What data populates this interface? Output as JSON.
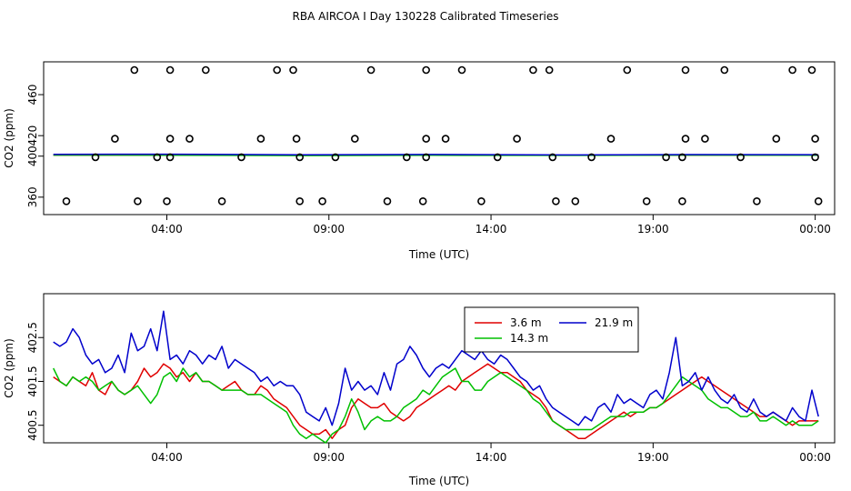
{
  "figure": {
    "title": "RBA AIRCOA I  Day 130228  Calibrated Timeseries"
  },
  "colors": {
    "s36": "#e00000",
    "s143": "#00c000",
    "s219": "#0000cc",
    "axis": "#000000"
  },
  "chart_data": [
    {
      "type": "line",
      "xlabel": "Time (UTC)",
      "ylabel": "CO2 (ppm)",
      "x_ticks": [
        "04:00",
        "09:00",
        "14:00",
        "19:00",
        "00:00"
      ],
      "y_ticks": [
        "360",
        "400",
        "420",
        "460"
      ],
      "xlim": [
        0,
        24.4
      ],
      "ylim": [
        343,
        492
      ],
      "grid": false,
      "series": [
        {
          "name": "3.6 m",
          "color": "#e00000",
          "x": [
            0.3,
            4,
            8,
            12,
            16,
            20,
            23.9
          ],
          "values": [
            401,
            401,
            400.8,
            401,
            400.9,
            401,
            401
          ]
        },
        {
          "name": "14.3 m",
          "color": "#00c000",
          "x": [
            0.3,
            4,
            8,
            12,
            16,
            20,
            23.9
          ],
          "values": [
            401,
            400.9,
            400.6,
            400.8,
            400.7,
            401,
            400.9
          ]
        },
        {
          "name": "21.9 m",
          "color": "#0000cc",
          "x": [
            0.3,
            4,
            8,
            12,
            16,
            20,
            23.9
          ],
          "values": [
            401.8,
            401.9,
            401.3,
            401.6,
            401.2,
            401.5,
            401.4
          ]
        }
      ],
      "scatter_points": [
        {
          "x": 0.7,
          "y": 356
        },
        {
          "x": 1.6,
          "y": 399
        },
        {
          "x": 2.2,
          "y": 417
        },
        {
          "x": 2.8,
          "y": 484
        },
        {
          "x": 2.9,
          "y": 356
        },
        {
          "x": 3.5,
          "y": 399
        },
        {
          "x": 3.8,
          "y": 356
        },
        {
          "x": 3.9,
          "y": 399
        },
        {
          "x": 3.9,
          "y": 417
        },
        {
          "x": 3.9,
          "y": 484
        },
        {
          "x": 4.5,
          "y": 417
        },
        {
          "x": 5.0,
          "y": 484
        },
        {
          "x": 5.5,
          "y": 356
        },
        {
          "x": 6.1,
          "y": 399
        },
        {
          "x": 6.7,
          "y": 417
        },
        {
          "x": 7.2,
          "y": 484
        },
        {
          "x": 7.7,
          "y": 484
        },
        {
          "x": 7.8,
          "y": 417
        },
        {
          "x": 7.9,
          "y": 399
        },
        {
          "x": 7.9,
          "y": 356
        },
        {
          "x": 8.6,
          "y": 356
        },
        {
          "x": 9.0,
          "y": 399
        },
        {
          "x": 9.6,
          "y": 417
        },
        {
          "x": 10.1,
          "y": 484
        },
        {
          "x": 10.6,
          "y": 356
        },
        {
          "x": 11.2,
          "y": 399
        },
        {
          "x": 11.7,
          "y": 356
        },
        {
          "x": 11.8,
          "y": 399
        },
        {
          "x": 11.8,
          "y": 417
        },
        {
          "x": 11.8,
          "y": 484
        },
        {
          "x": 12.4,
          "y": 417
        },
        {
          "x": 12.9,
          "y": 484
        },
        {
          "x": 13.5,
          "y": 356
        },
        {
          "x": 14.0,
          "y": 399
        },
        {
          "x": 14.6,
          "y": 417
        },
        {
          "x": 15.1,
          "y": 484
        },
        {
          "x": 15.6,
          "y": 484
        },
        {
          "x": 15.7,
          "y": 399
        },
        {
          "x": 15.8,
          "y": 356
        },
        {
          "x": 16.4,
          "y": 356
        },
        {
          "x": 16.9,
          "y": 399
        },
        {
          "x": 17.5,
          "y": 417
        },
        {
          "x": 18.0,
          "y": 484
        },
        {
          "x": 18.6,
          "y": 356
        },
        {
          "x": 19.2,
          "y": 399
        },
        {
          "x": 19.7,
          "y": 356
        },
        {
          "x": 19.7,
          "y": 399
        },
        {
          "x": 19.8,
          "y": 417
        },
        {
          "x": 19.8,
          "y": 484
        },
        {
          "x": 20.4,
          "y": 417
        },
        {
          "x": 21.0,
          "y": 484
        },
        {
          "x": 21.5,
          "y": 399
        },
        {
          "x": 22.0,
          "y": 356
        },
        {
          "x": 22.6,
          "y": 417
        },
        {
          "x": 23.1,
          "y": 484
        },
        {
          "x": 23.7,
          "y": 484
        },
        {
          "x": 23.8,
          "y": 417
        },
        {
          "x": 23.8,
          "y": 399
        },
        {
          "x": 23.9,
          "y": 356
        }
      ]
    },
    {
      "type": "line",
      "xlabel": "Time (UTC)",
      "ylabel": "CO2 (ppm)",
      "x_ticks": [
        "04:00",
        "09:00",
        "14:00",
        "19:00",
        "00:00"
      ],
      "y_ticks": [
        "400.5",
        "401.5",
        "402.5"
      ],
      "xlim": [
        0,
        24.4
      ],
      "ylim": [
        400.1,
        403.5
      ],
      "grid": false,
      "legend": {
        "position": "top-center",
        "entries": [
          "3.6 m",
          "21.9 m",
          "14.3 m"
        ]
      },
      "series": [
        {
          "name": "3.6 m",
          "color": "#e00000",
          "x": [
            0.3,
            0.5,
            0.7,
            0.9,
            1.1,
            1.3,
            1.5,
            1.7,
            1.9,
            2.1,
            2.3,
            2.5,
            2.7,
            2.9,
            3.1,
            3.3,
            3.5,
            3.7,
            3.9,
            4.1,
            4.3,
            4.5,
            4.7,
            4.9,
            5.1,
            5.3,
            5.5,
            5.7,
            5.9,
            6.1,
            6.3,
            6.5,
            6.7,
            6.9,
            7.1,
            7.3,
            7.5,
            7.7,
            7.9,
            8.1,
            8.3,
            8.5,
            8.7,
            8.9,
            9.1,
            9.3,
            9.5,
            9.7,
            9.9,
            10.1,
            10.3,
            10.5,
            10.7,
            10.9,
            11.1,
            11.3,
            11.5,
            11.7,
            11.9,
            12.1,
            12.3,
            12.5,
            12.7,
            12.9,
            13.1,
            13.3,
            13.5,
            13.7,
            13.9,
            14.1,
            14.3,
            14.5,
            14.7,
            14.9,
            15.1,
            15.3,
            15.5,
            15.7,
            15.9,
            16.1,
            16.3,
            16.5,
            16.7,
            16.9,
            17.1,
            17.3,
            17.5,
            17.7,
            17.9,
            18.1,
            18.3,
            18.5,
            18.7,
            18.9,
            19.1,
            19.3,
            19.5,
            19.7,
            19.9,
            20.1,
            20.3,
            20.5,
            20.7,
            20.9,
            21.1,
            21.3,
            21.5,
            21.7,
            21.9,
            22.1,
            22.3,
            22.5,
            22.7,
            22.9,
            23.1,
            23.3,
            23.5,
            23.7,
            23.9
          ],
          "values": [
            401.6,
            401.5,
            401.4,
            401.6,
            401.5,
            401.4,
            401.7,
            401.3,
            401.2,
            401.5,
            401.3,
            401.2,
            401.3,
            401.5,
            401.8,
            401.6,
            401.7,
            401.9,
            401.8,
            401.6,
            401.7,
            401.5,
            401.7,
            401.5,
            401.5,
            401.4,
            401.3,
            401.4,
            401.5,
            401.3,
            401.2,
            401.2,
            401.4,
            401.3,
            401.1,
            401.0,
            400.9,
            400.7,
            400.5,
            400.4,
            400.3,
            400.3,
            400.4,
            400.2,
            400.4,
            400.5,
            400.9,
            401.1,
            401.0,
            400.9,
            400.9,
            401.0,
            400.8,
            400.7,
            400.6,
            400.7,
            400.9,
            401.0,
            401.1,
            401.2,
            401.3,
            401.4,
            401.3,
            401.5,
            401.6,
            401.7,
            401.8,
            401.9,
            401.8,
            401.7,
            401.7,
            401.6,
            401.5,
            401.3,
            401.2,
            401.1,
            400.9,
            400.6,
            400.5,
            400.4,
            400.3,
            400.2,
            400.2,
            400.3,
            400.4,
            400.5,
            400.6,
            400.7,
            400.8,
            400.7,
            400.8,
            400.8,
            400.9,
            400.9,
            401.0,
            401.1,
            401.2,
            401.3,
            401.4,
            401.5,
            401.6,
            401.5,
            401.4,
            401.3,
            401.2,
            401.1,
            401.0,
            400.9,
            400.8,
            400.7,
            400.7,
            400.8,
            400.7,
            400.6,
            400.5,
            400.6,
            400.6,
            400.6,
            400.6
          ]
        },
        {
          "name": "14.3 m",
          "color": "#00c000",
          "x": [
            0.3,
            0.5,
            0.7,
            0.9,
            1.1,
            1.3,
            1.5,
            1.7,
            1.9,
            2.1,
            2.3,
            2.5,
            2.7,
            2.9,
            3.1,
            3.3,
            3.5,
            3.7,
            3.9,
            4.1,
            4.3,
            4.5,
            4.7,
            4.9,
            5.1,
            5.3,
            5.5,
            5.7,
            5.9,
            6.1,
            6.3,
            6.5,
            6.7,
            6.9,
            7.1,
            7.3,
            7.5,
            7.7,
            7.9,
            8.1,
            8.3,
            8.5,
            8.7,
            8.9,
            9.1,
            9.3,
            9.5,
            9.7,
            9.9,
            10.1,
            10.3,
            10.5,
            10.7,
            10.9,
            11.1,
            11.3,
            11.5,
            11.7,
            11.9,
            12.1,
            12.3,
            12.5,
            12.7,
            12.9,
            13.1,
            13.3,
            13.5,
            13.7,
            13.9,
            14.1,
            14.3,
            14.5,
            14.7,
            14.9,
            15.1,
            15.3,
            15.5,
            15.7,
            15.9,
            16.1,
            16.3,
            16.5,
            16.7,
            16.9,
            17.1,
            17.3,
            17.5,
            17.7,
            17.9,
            18.1,
            18.3,
            18.5,
            18.7,
            18.9,
            19.1,
            19.3,
            19.5,
            19.7,
            19.9,
            20.1,
            20.3,
            20.5,
            20.7,
            20.9,
            21.1,
            21.3,
            21.5,
            21.7,
            21.9,
            22.1,
            22.3,
            22.5,
            22.7,
            22.9,
            23.1,
            23.3,
            23.5,
            23.7,
            23.9
          ],
          "values": [
            401.8,
            401.5,
            401.4,
            401.6,
            401.5,
            401.6,
            401.5,
            401.3,
            401.4,
            401.5,
            401.3,
            401.2,
            401.3,
            401.4,
            401.2,
            401.0,
            401.2,
            401.6,
            401.7,
            401.5,
            401.8,
            401.6,
            401.7,
            401.5,
            401.5,
            401.4,
            401.3,
            401.3,
            401.3,
            401.3,
            401.2,
            401.2,
            401.2,
            401.1,
            401.0,
            400.9,
            400.8,
            400.5,
            400.3,
            400.2,
            400.3,
            400.2,
            400.1,
            400.3,
            400.4,
            400.7,
            401.1,
            400.8,
            400.4,
            400.6,
            400.7,
            400.6,
            400.6,
            400.7,
            400.9,
            401.0,
            401.1,
            401.3,
            401.2,
            401.4,
            401.6,
            401.7,
            401.8,
            401.5,
            401.5,
            401.3,
            401.3,
            401.5,
            401.6,
            401.7,
            401.6,
            401.5,
            401.4,
            401.3,
            401.1,
            401.0,
            400.8,
            400.6,
            400.5,
            400.4,
            400.4,
            400.4,
            400.4,
            400.4,
            400.5,
            400.6,
            400.7,
            400.7,
            400.7,
            400.8,
            400.8,
            400.8,
            400.9,
            400.9,
            401.0,
            401.2,
            401.4,
            401.6,
            401.5,
            401.4,
            401.3,
            401.1,
            401.0,
            400.9,
            400.9,
            400.8,
            400.7,
            400.7,
            400.8,
            400.6,
            400.6,
            400.7,
            400.6,
            400.5,
            400.6,
            400.5,
            400.5,
            400.5,
            400.6
          ]
        },
        {
          "name": "21.9 m",
          "color": "#0000cc",
          "x": [
            0.3,
            0.5,
            0.7,
            0.9,
            1.1,
            1.3,
            1.5,
            1.7,
            1.9,
            2.1,
            2.3,
            2.5,
            2.7,
            2.9,
            3.1,
            3.3,
            3.5,
            3.7,
            3.9,
            4.1,
            4.3,
            4.5,
            4.7,
            4.9,
            5.1,
            5.3,
            5.5,
            5.7,
            5.9,
            6.1,
            6.3,
            6.5,
            6.7,
            6.9,
            7.1,
            7.3,
            7.5,
            7.7,
            7.9,
            8.1,
            8.3,
            8.5,
            8.7,
            8.9,
            9.1,
            9.3,
            9.5,
            9.7,
            9.9,
            10.1,
            10.3,
            10.5,
            10.7,
            10.9,
            11.1,
            11.3,
            11.5,
            11.7,
            11.9,
            12.1,
            12.3,
            12.5,
            12.7,
            12.9,
            13.1,
            13.3,
            13.5,
            13.7,
            13.9,
            14.1,
            14.3,
            14.5,
            14.7,
            14.9,
            15.1,
            15.3,
            15.5,
            15.7,
            15.9,
            16.1,
            16.3,
            16.5,
            16.7,
            16.9,
            17.1,
            17.3,
            17.5,
            17.7,
            17.9,
            18.1,
            18.3,
            18.5,
            18.7,
            18.9,
            19.1,
            19.3,
            19.5,
            19.7,
            19.9,
            20.1,
            20.3,
            20.5,
            20.7,
            20.9,
            21.1,
            21.3,
            21.5,
            21.7,
            21.9,
            22.1,
            22.3,
            22.5,
            22.7,
            22.9,
            23.1,
            23.3,
            23.5,
            23.7,
            23.9
          ],
          "values": [
            402.4,
            402.3,
            402.4,
            402.7,
            402.5,
            402.1,
            401.9,
            402.0,
            401.7,
            401.8,
            402.1,
            401.7,
            402.6,
            402.2,
            402.3,
            402.7,
            402.2,
            403.1,
            402.0,
            402.1,
            401.9,
            402.2,
            402.1,
            401.9,
            402.1,
            402.0,
            402.3,
            401.8,
            402.0,
            401.9,
            401.8,
            401.7,
            401.5,
            401.6,
            401.4,
            401.5,
            401.4,
            401.4,
            401.2,
            400.8,
            400.7,
            400.6,
            400.9,
            400.5,
            401.0,
            401.8,
            401.3,
            401.5,
            401.3,
            401.4,
            401.2,
            401.7,
            401.3,
            401.9,
            402.0,
            402.3,
            402.1,
            401.8,
            401.6,
            401.8,
            401.9,
            401.8,
            402.0,
            402.2,
            402.1,
            402.0,
            402.2,
            402.0,
            401.9,
            402.1,
            402.0,
            401.8,
            401.6,
            401.5,
            401.3,
            401.4,
            401.1,
            400.9,
            400.8,
            400.7,
            400.6,
            400.5,
            400.7,
            400.6,
            400.9,
            401.0,
            400.8,
            401.2,
            401.0,
            401.1,
            401.0,
            400.9,
            401.2,
            401.3,
            401.1,
            401.7,
            402.5,
            401.4,
            401.5,
            401.7,
            401.3,
            401.6,
            401.3,
            401.1,
            401.0,
            401.2,
            400.9,
            400.8,
            401.1,
            400.8,
            400.7,
            400.8,
            400.7,
            400.6,
            400.9,
            400.7,
            400.6,
            401.3,
            400.7
          ]
        }
      ]
    }
  ]
}
